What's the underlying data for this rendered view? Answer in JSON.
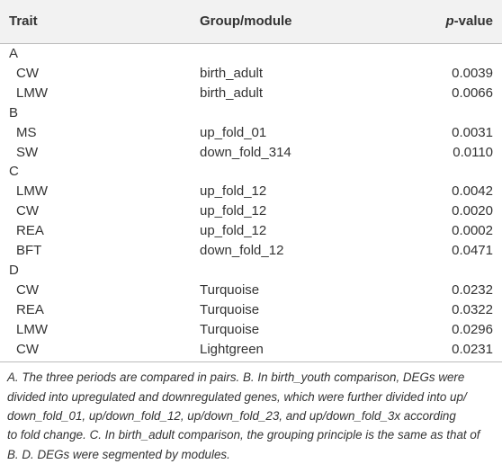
{
  "header": {
    "trait": "Trait",
    "group": "Group/module",
    "pvalue_italic": "p",
    "pvalue_rest": "-value"
  },
  "sections": [
    {
      "label": "A",
      "rows": [
        [
          "CW",
          "birth_adult",
          "0.0039"
        ],
        [
          "LMW",
          "birth_adult",
          "0.0066"
        ]
      ]
    },
    {
      "label": "B",
      "rows": [
        [
          "MS",
          "up_fold_01",
          "0.0031"
        ],
        [
          "SW",
          "down_fold_314",
          "0.0110"
        ]
      ]
    },
    {
      "label": "C",
      "rows": [
        [
          "LMW",
          "up_fold_12",
          "0.0042"
        ],
        [
          "CW",
          "up_fold_12",
          "0.0020"
        ],
        [
          "REA",
          "up_fold_12",
          "0.0002"
        ],
        [
          "BFT",
          "down_fold_12",
          "0.0471"
        ]
      ]
    },
    {
      "label": "D",
      "rows": [
        [
          "CW",
          "Turquoise",
          "0.0232"
        ],
        [
          "REA",
          "Turquoise",
          "0.0322"
        ],
        [
          "LMW",
          "Turquoise",
          "0.0296"
        ],
        [
          "CW",
          "Lightgreen",
          "0.0231"
        ]
      ]
    }
  ],
  "footnote": [
    "A. The three periods are compared in pairs. B. In birth_youth comparison, DEGs were",
    "divided into upregulated and downregulated genes, which were further divided into up/",
    "down_fold_01, up/down_fold_12, up/down_fold_23, and up/down_fold_3x according",
    "to fold change. C. In birth_adult comparison, the grouping principle is the same as that of",
    "B. D. DEGs were segmented by modules."
  ]
}
